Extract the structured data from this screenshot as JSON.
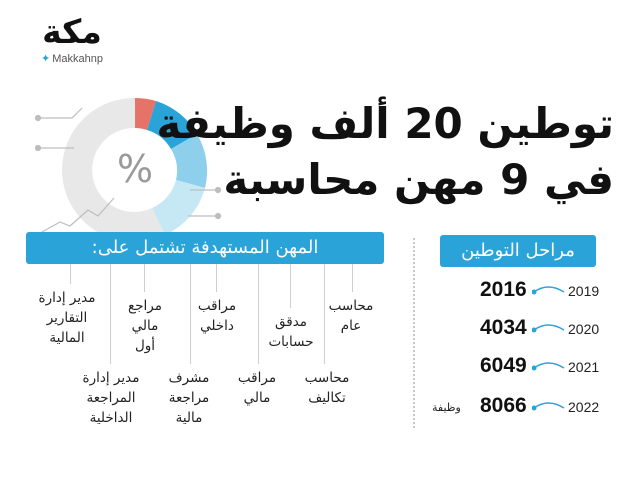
{
  "logo": {
    "word": "مكة",
    "handle": "Makkahnp",
    "icon": "twitter-bird-icon"
  },
  "title": {
    "line1": "توطين 20 ألف وظيفة",
    "line2": "في 9 مهن محاسبة"
  },
  "illustration": {
    "icon": "percent-donut-icon",
    "symbol": "%",
    "colors": [
      "#e8e8e8",
      "#e57368",
      "#2aa3d8",
      "#8ed0ec",
      "#c6e8f5"
    ]
  },
  "jobs": {
    "header": "المهن المستهدفة تشتمل على:",
    "items": [
      "محاسب\nعام",
      "محاسب\nتكاليف",
      "مدقق\nحسابات",
      "مراقب\nمالي",
      "مراقب\nداخلي",
      "مشرف\nمراجعة\nمالية",
      "مراجع\nمالي\nأول",
      "مدير إدارة\nالمراجعة\nالداخلية",
      "مدير إدارة\nالتقارير\nالمالية"
    ]
  },
  "stages": {
    "header": "مراحل التوطين",
    "rows": [
      {
        "year": "2019",
        "value": "2016",
        "unit": ""
      },
      {
        "year": "2020",
        "value": "4034",
        "unit": ""
      },
      {
        "year": "2021",
        "value": "6049",
        "unit": ""
      },
      {
        "year": "2022",
        "value": "8066",
        "unit": "وظيفة"
      }
    ]
  },
  "accent_color": "#2aa3d8"
}
